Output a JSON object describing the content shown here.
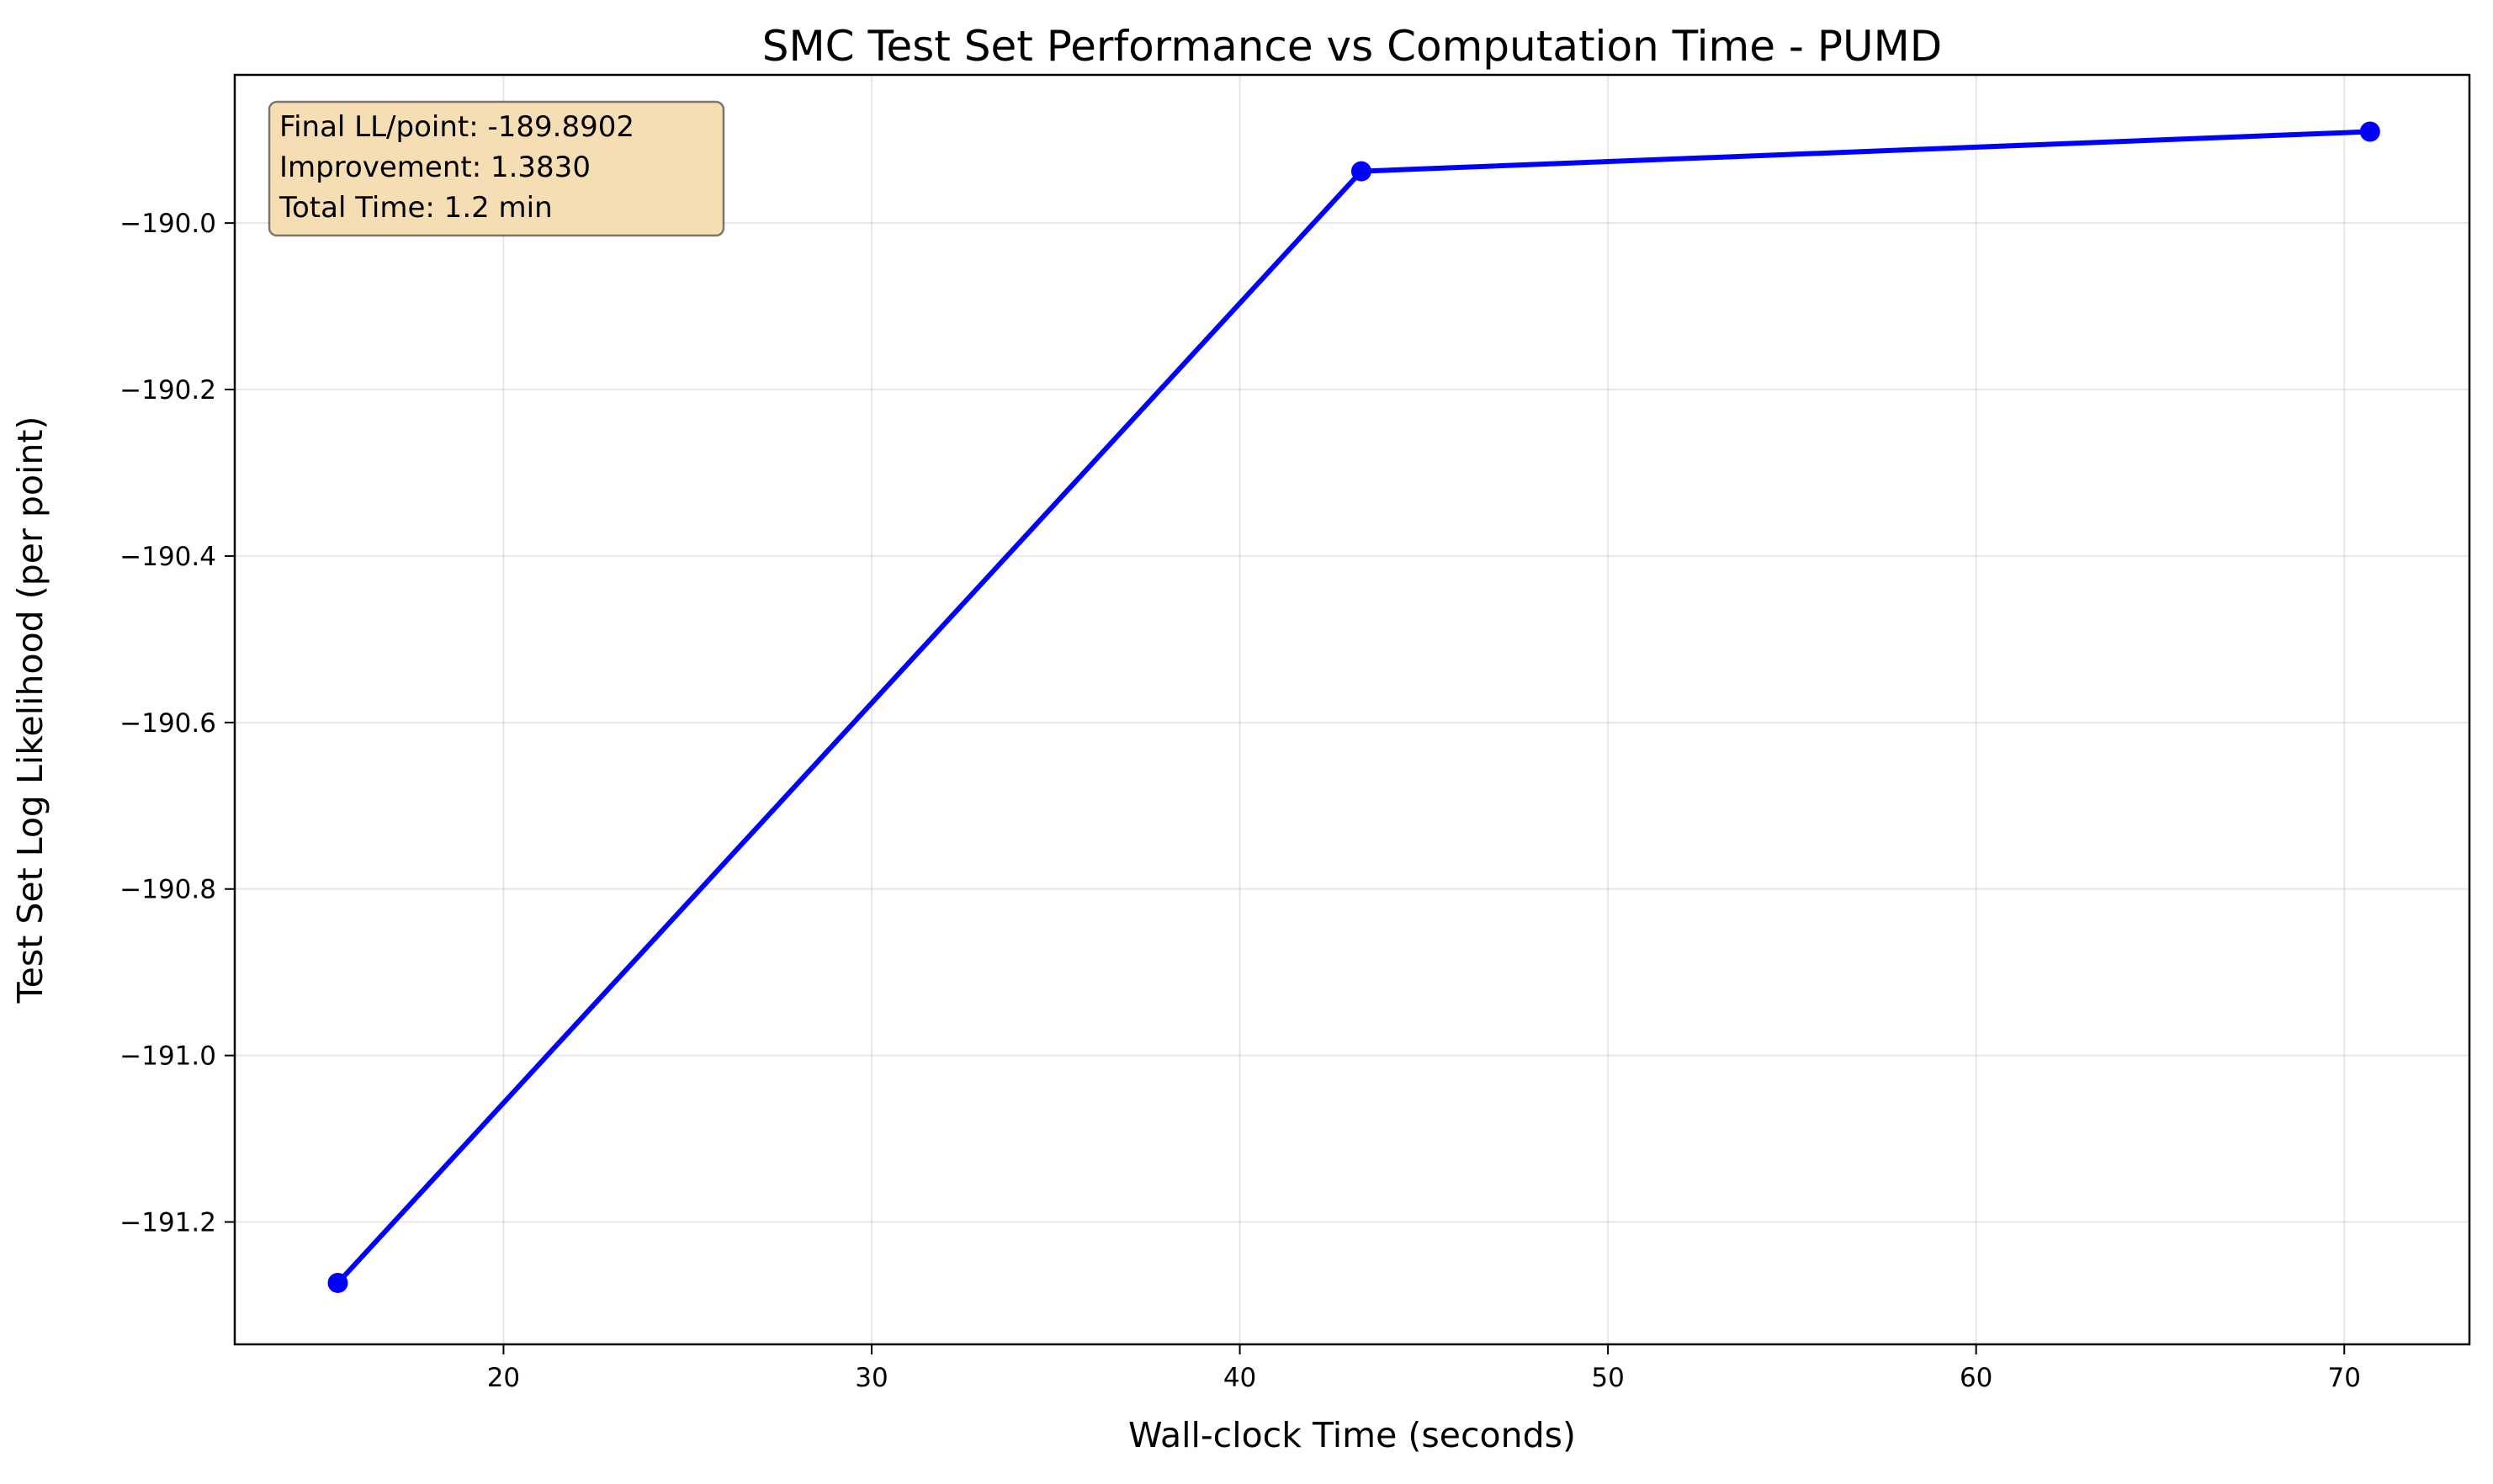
{
  "chart_data": {
    "type": "line",
    "title": "SMC Test Set Performance vs Computation Time - PUMD",
    "xlabel": "Wall-clock Time (seconds)",
    "ylabel": "Test Set Log Likelihood (per point)",
    "xlim": [
      12.7,
      73.4
    ],
    "ylim": [
      -191.347,
      -189.822
    ],
    "xticks": [
      20,
      30,
      40,
      50,
      60,
      70
    ],
    "xtick_labels": [
      "20",
      "30",
      "40",
      "50",
      "60",
      "70"
    ],
    "yticks": [
      -190.0,
      -190.2,
      -190.4,
      -190.6,
      -190.8,
      -191.0,
      -191.2
    ],
    "ytick_labels": [
      "−190.0",
      "−190.2",
      "−190.4",
      "−190.6",
      "−190.8",
      "−191.0",
      "−191.2"
    ],
    "grid": true,
    "series": [
      {
        "color": "#0000ff",
        "marker": "circle",
        "x": [
          15.5,
          43.3,
          70.7
        ],
        "y": [
          -191.2732,
          -189.9378,
          -189.8902
        ]
      }
    ],
    "annotation": {
      "lines": [
        "Final LL/point: -189.8902",
        "Improvement: 1.3830",
        "Total Time: 1.2 min"
      ],
      "placement": "top-left",
      "background": "#f5deb3"
    }
  }
}
